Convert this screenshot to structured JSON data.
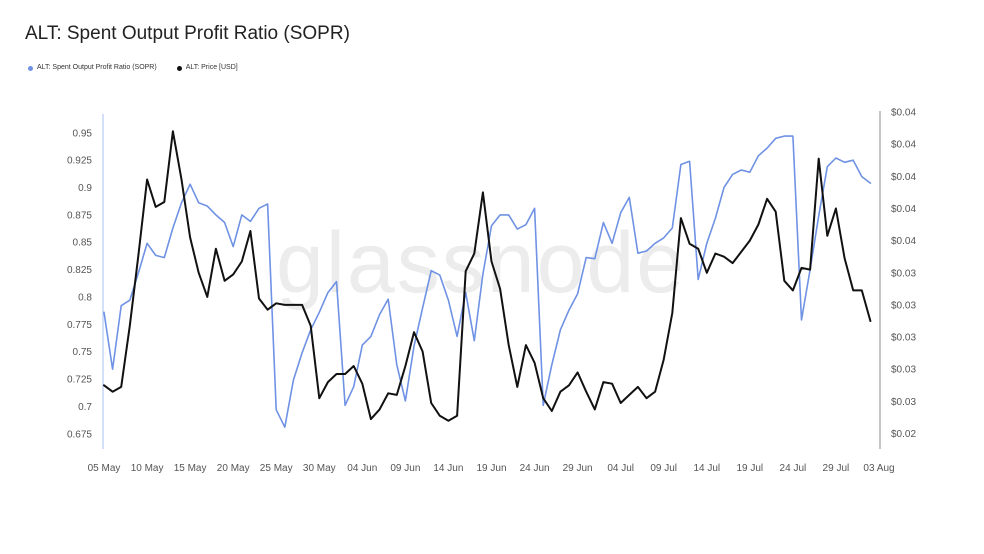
{
  "watermark": "glassnode",
  "chart_data": {
    "type": "line",
    "title": "ALT: Spent Output Profit Ratio (SOPR)",
    "legend_position": "top-left",
    "grid": false,
    "xlim": [
      "05 May",
      "03 Aug"
    ],
    "xticks": [
      "05 May",
      "10 May",
      "15 May",
      "20 May",
      "25 May",
      "30 May",
      "04 Jun",
      "09 Jun",
      "14 Jun",
      "19 Jun",
      "24 Jun",
      "29 Jun",
      "04 Jul",
      "09 Jul",
      "14 Jul",
      "19 Jul",
      "24 Jul",
      "29 Jul",
      "03 Aug"
    ],
    "ylim": [
      0.662,
      0.969
    ],
    "yticks": [
      "0.675",
      "0.7",
      "0.725",
      "0.75",
      "0.775",
      "0.8",
      "0.825",
      "0.85",
      "0.875",
      "0.9",
      "0.925",
      "0.95"
    ],
    "y2lim": [
      0.0231,
      0.044
    ],
    "y2ticks": [
      0.024,
      0.026,
      0.028,
      0.03,
      0.032,
      0.034,
      0.036,
      0.038,
      0.04,
      0.042,
      0.044
    ],
    "y2ticklabels": [
      "$0.02",
      "$0.03",
      "$0.03",
      "$0.03",
      "$0.03",
      "$0.03",
      "$0.04",
      "$0.04",
      "$0.04",
      "$0.04",
      "$0.04"
    ],
    "x": [
      "05 May",
      "06 May",
      "07 May",
      "08 May",
      "09 May",
      "10 May",
      "11 May",
      "12 May",
      "13 May",
      "14 May",
      "15 May",
      "16 May",
      "17 May",
      "18 May",
      "19 May",
      "20 May",
      "21 May",
      "22 May",
      "23 May",
      "24 May",
      "25 May",
      "26 May",
      "27 May",
      "28 May",
      "29 May",
      "30 May",
      "31 May",
      "01 Jun",
      "02 Jun",
      "03 Jun",
      "04 Jun",
      "05 Jun",
      "06 Jun",
      "07 Jun",
      "08 Jun",
      "09 Jun",
      "10 Jun",
      "11 Jun",
      "12 Jun",
      "13 Jun",
      "14 Jun",
      "15 Jun",
      "16 Jun",
      "17 Jun",
      "18 Jun",
      "19 Jun",
      "20 Jun",
      "21 Jun",
      "22 Jun",
      "23 Jun",
      "24 Jun",
      "25 Jun",
      "26 Jun",
      "27 Jun",
      "28 Jun",
      "29 Jun",
      "30 Jun",
      "01 Jul",
      "02 Jul",
      "03 Jul",
      "04 Jul",
      "05 Jul",
      "06 Jul",
      "07 Jul",
      "08 Jul",
      "09 Jul",
      "10 Jul",
      "11 Jul",
      "12 Jul",
      "13 Jul",
      "14 Jul",
      "15 Jul",
      "16 Jul",
      "17 Jul",
      "18 Jul",
      "19 Jul",
      "20 Jul",
      "21 Jul",
      "22 Jul",
      "23 Jul",
      "24 Jul",
      "25 Jul",
      "26 Jul",
      "27 Jul",
      "28 Jul",
      "29 Jul",
      "30 Jul",
      "31 Jul",
      "01 Aug",
      "02 Aug"
    ],
    "series": [
      {
        "name": "ALT: Spent Output Profit Ratio (SOPR)",
        "color": "#6f92e4",
        "right_axis": false,
        "values": [
          0.786,
          0.734,
          0.792,
          0.797,
          0.822,
          0.849,
          0.838,
          0.836,
          0.863,
          0.886,
          0.903,
          0.886,
          0.883,
          0.875,
          0.868,
          0.846,
          0.875,
          0.869,
          0.881,
          0.885,
          0.697,
          0.681,
          0.724,
          0.749,
          0.77,
          0.786,
          0.804,
          0.814,
          0.701,
          0.718,
          0.756,
          0.764,
          0.784,
          0.798,
          0.738,
          0.705,
          0.755,
          0.79,
          0.824,
          0.82,
          0.797,
          0.764,
          0.804,
          0.76,
          0.821,
          0.865,
          0.875,
          0.875,
          0.862,
          0.866,
          0.881,
          0.701,
          0.738,
          0.77,
          0.788,
          0.803,
          0.836,
          0.835,
          0.868,
          0.849,
          0.877,
          0.891,
          0.84,
          0.842,
          0.849,
          0.854,
          0.863,
          0.921,
          0.924,
          0.816,
          0.849,
          0.872,
          0.9,
          0.912,
          0.916,
          0.914,
          0.929,
          0.936,
          0.945,
          0.947,
          0.947,
          0.779,
          0.825,
          0.874,
          0.919,
          0.927,
          0.923,
          0.925,
          0.91,
          0.904
        ]
      },
      {
        "name": "ALT: Price [USD]",
        "color": "#111111",
        "right_axis": true,
        "values": [
          0.027,
          0.0266,
          0.0269,
          0.0307,
          0.0351,
          0.0398,
          0.0381,
          0.0384,
          0.0428,
          0.0398,
          0.0362,
          0.034,
          0.0325,
          0.0355,
          0.0335,
          0.0339,
          0.0347,
          0.0366,
          0.0324,
          0.0317,
          0.0321,
          0.032,
          0.032,
          0.032,
          0.0307,
          0.0262,
          0.0272,
          0.0277,
          0.0277,
          0.0282,
          0.0271,
          0.0249,
          0.0255,
          0.0265,
          0.0264,
          0.0282,
          0.0303,
          0.0291,
          0.0259,
          0.0251,
          0.0248,
          0.0251,
          0.0341,
          0.0352,
          0.039,
          0.0347,
          0.033,
          0.0295,
          0.0269,
          0.0295,
          0.0284,
          0.0262,
          0.0254,
          0.0266,
          0.027,
          0.0278,
          0.0266,
          0.0255,
          0.0272,
          0.0271,
          0.0259,
          0.0264,
          0.0269,
          0.0262,
          0.0266,
          0.0286,
          0.0315,
          0.0374,
          0.0358,
          0.0355,
          0.034,
          0.0352,
          0.035,
          0.0346,
          0.0353,
          0.036,
          0.037,
          0.0386,
          0.0378,
          0.0335,
          0.0329,
          0.0343,
          0.0342,
          0.0411,
          0.0363,
          0.038,
          0.0349,
          0.0329,
          0.0329,
          0.031
        ]
      }
    ]
  }
}
